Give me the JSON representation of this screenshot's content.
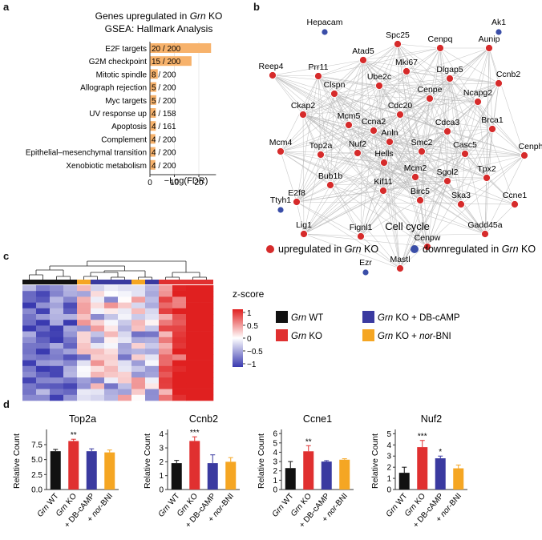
{
  "panels": {
    "a": "a",
    "b": "b",
    "c": "c",
    "d": "d"
  },
  "panel_a": {
    "title_line1_prefix": "Genes upregulated in ",
    "title_line1_gene": "Grn",
    "title_line1_suffix": " KO",
    "title_line2": "GSEA: Hallmark Analysis"
  },
  "panel_b": {
    "caption": "Cell cycle",
    "legend_up_prefix": "upregulated in ",
    "legend_down_prefix": "downregulated in ",
    "legend_gene": "Grn",
    "legend_suffix": " KO",
    "colors": {
      "up": "#d62b2b",
      "down": "#3a4ea8",
      "edge": "#b8b8b8"
    },
    "nodes_up": [
      "Spc25",
      "Cenpq",
      "Aunip",
      "Atad5",
      "Mki67",
      "Dlgap5",
      "Prr11",
      "Ube2c",
      "Ccnb2",
      "Reep4",
      "Clspn",
      "Cenpe",
      "Ncapg2",
      "Ckap2",
      "Cdc20",
      "Mcm5",
      "Ccna2",
      "Cdca3",
      "Brca1",
      "Anln",
      "Nuf2",
      "Mcm4",
      "Smc2",
      "Casc5",
      "Cenph",
      "Top2a",
      "Hells",
      "Mcm2",
      "Tpx2",
      "Bub1b",
      "Sgol2",
      "Kif11",
      "E2f8",
      "Birc5",
      "Ska3",
      "Ccne1",
      "Lig1",
      "Fignl1",
      "Gadd45a",
      "Cenpw",
      "Mastl"
    ],
    "nodes_down": [
      "Hepacam",
      "Ak1",
      "Ttyh1",
      "Ezr"
    ]
  },
  "panel_c": {
    "zscore_title": "z-score",
    "zscore_ticks": [
      "1",
      "0.5",
      "0",
      "−0.5",
      "−1"
    ],
    "legend": [
      {
        "gene": "Grn",
        "rest": " WT",
        "color": "#111111"
      },
      {
        "gene": "Grn",
        "rest": " KO + DB-cAMP",
        "color": "#3a3aa0"
      },
      {
        "gene": "Grn",
        "rest": " KO",
        "color": "#e03030"
      },
      {
        "gene": "Grn",
        "rest": " KO + ",
        "italic_tail": "nor",
        "tail": "-BNI",
        "color": "#f5a623"
      }
    ],
    "sample_groups": [
      "WT",
      "WT",
      "WT",
      "WT",
      "BNI",
      "DB",
      "DB",
      "DB",
      "BNI",
      "DB",
      "KO",
      "KO",
      "KO",
      "KO"
    ],
    "row_count": 20
  },
  "chart_data": [
    {
      "type": "bar",
      "orientation": "horizontal",
      "title": "Genes upregulated in Grn KO — GSEA: Hallmark Analysis",
      "xlabel": "−Log(FDR)",
      "xlim": [
        0,
        27
      ],
      "xticks": [
        "0",
        "10",
        "20"
      ],
      "categories": [
        "E2F targets",
        "G2M checkpoint",
        "Mitotic spindle",
        "Allograph rejection",
        "Myc targets",
        "UV response up",
        "Apoptosis",
        "Complement",
        "Epithelial–mesenchymal transition",
        "Xenobiotic metabolism"
      ],
      "values": [
        25,
        17,
        3.2,
        2.6,
        2.6,
        2.4,
        2.4,
        2.2,
        2.2,
        2.2
      ],
      "data_labels": [
        "20 / 200",
        "15 / 200",
        "8 / 200",
        "5 / 200",
        "5 / 200",
        "4 / 158",
        "4 / 161",
        "4 / 200",
        "4 / 200",
        "4 / 200"
      ],
      "color": "#f7b26b"
    },
    {
      "type": "bar",
      "title": "Top2a",
      "ylabel": "Relative Count",
      "ylim": [
        0,
        9.5
      ],
      "yticks": [
        "0.0",
        "2.5",
        "5.0",
        "7.5"
      ],
      "categories": [
        "Grn WT",
        "Grn KO",
        "+ DB-cAMP",
        "+ nor-BNI"
      ],
      "values": [
        6.4,
        8.1,
        6.4,
        6.2
      ],
      "errors": [
        0.3,
        0.3,
        0.4,
        0.4
      ],
      "significance": [
        "",
        "**",
        "",
        ""
      ]
    },
    {
      "type": "bar",
      "title": "Ccnb2",
      "ylabel": "Relative Count",
      "ylim": [
        0,
        4.1
      ],
      "yticks": [
        "0",
        "1",
        "2",
        "3",
        "4"
      ],
      "categories": [
        "Grn WT",
        "Grn KO",
        "+ DB-cAMP",
        "+ nor-BNI"
      ],
      "values": [
        1.9,
        3.5,
        1.9,
        2.0
      ],
      "errors": [
        0.2,
        0.3,
        0.6,
        0.3
      ],
      "significance": [
        "",
        "***",
        "",
        ""
      ]
    },
    {
      "type": "bar",
      "title": "Ccne1",
      "ylabel": "Relative Count",
      "ylim": [
        0,
        6.1
      ],
      "yticks": [
        "0",
        "1",
        "2",
        "3",
        "4",
        "5",
        "6"
      ],
      "categories": [
        "Grn WT",
        "Grn KO",
        "+ DB-cAMP",
        "+ nor-BNI"
      ],
      "values": [
        2.3,
        4.1,
        3.0,
        3.2
      ],
      "errors": [
        0.7,
        0.6,
        0.1,
        0.1
      ],
      "significance": [
        "",
        "**",
        "",
        ""
      ]
    },
    {
      "type": "bar",
      "title": "Nuf2",
      "ylabel": "Relative Count",
      "ylim": [
        0,
        5.1
      ],
      "yticks": [
        "0",
        "1",
        "2",
        "3",
        "4",
        "5"
      ],
      "categories": [
        "Grn WT",
        "Grn KO",
        "+ DB-cAMP",
        "+ nor-BNI"
      ],
      "values": [
        1.5,
        3.8,
        2.8,
        1.9
      ],
      "errors": [
        0.5,
        0.6,
        0.2,
        0.3
      ],
      "significance": [
        "",
        "***",
        "*",
        ""
      ]
    }
  ],
  "bar_colors": [
    "#111111",
    "#e03030",
    "#3a3aa0",
    "#f5a623"
  ],
  "xtick_labels_d": [
    {
      "italic": "Grn",
      "rest": " WT"
    },
    {
      "italic": "Grn",
      "rest": " KO"
    },
    {
      "italic": "",
      "rest": "+ DB-cAMP"
    },
    {
      "italic": "nor",
      "rest": "-BNI",
      "prefix": "+ "
    }
  ]
}
